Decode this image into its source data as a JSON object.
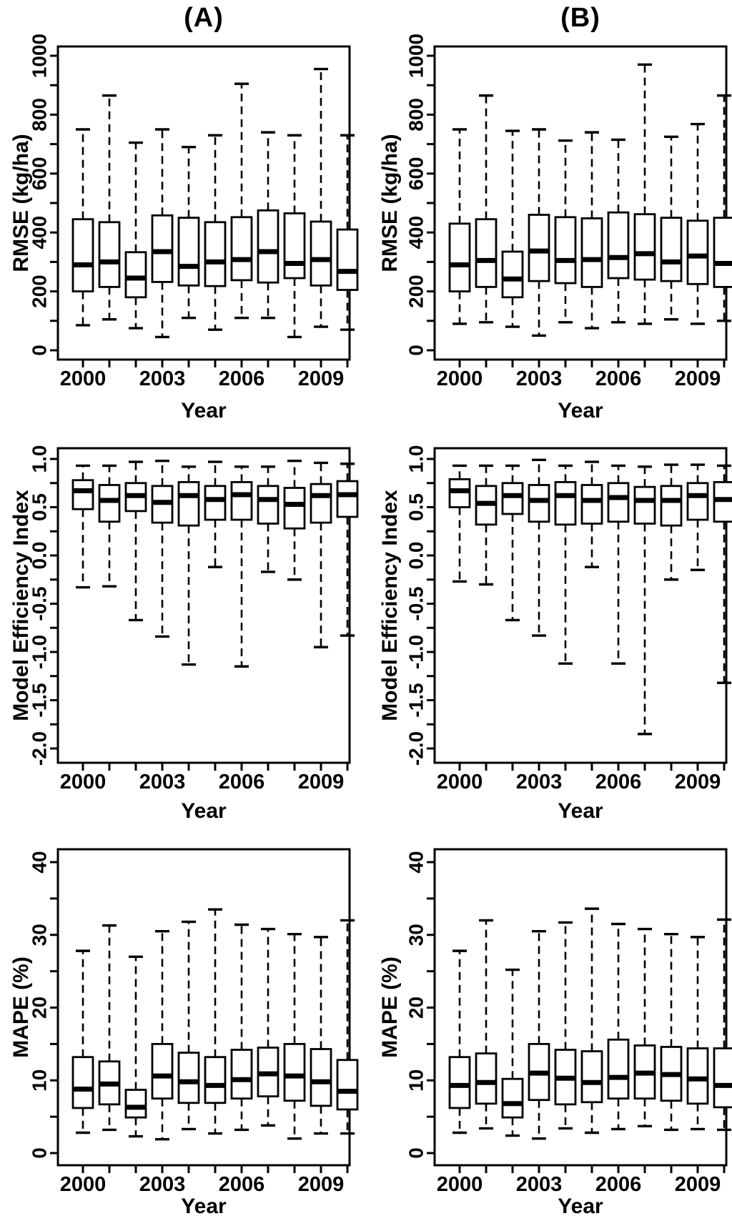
{
  "page": {
    "background": "#ffffff",
    "ink": "#000000"
  },
  "chart_data": [
    {
      "type": "boxplot",
      "column": "A",
      "metric": "rmse",
      "panel_title": "(A)",
      "ylabel": "RMSE (kg/ha)",
      "xlabel": "Year",
      "ylim": [
        0,
        1000
      ],
      "y_minor_step": 100,
      "y_major": [
        0,
        200,
        400,
        600,
        800,
        1000
      ],
      "y_major_labels": [
        "0",
        "200",
        "400",
        "600",
        "800",
        "1000"
      ],
      "x_labeled": {
        "positions": [
          0,
          3,
          6,
          9
        ],
        "labels": [
          "2000",
          "2003",
          "2006",
          "2009"
        ]
      },
      "boxes": [
        {
          "year": 2000,
          "low": 85,
          "q1": 200,
          "median": 290,
          "q3": 445,
          "high": 750
        },
        {
          "year": 2001,
          "low": 105,
          "q1": 215,
          "median": 300,
          "q3": 435,
          "high": 865
        },
        {
          "year": 2002,
          "low": 75,
          "q1": 180,
          "median": 245,
          "q3": 333,
          "high": 705
        },
        {
          "year": 2003,
          "low": 45,
          "q1": 232,
          "median": 335,
          "q3": 458,
          "high": 750
        },
        {
          "year": 2004,
          "low": 110,
          "q1": 220,
          "median": 285,
          "q3": 450,
          "high": 690
        },
        {
          "year": 2005,
          "low": 70,
          "q1": 218,
          "median": 300,
          "q3": 435,
          "high": 730
        },
        {
          "year": 2006,
          "low": 110,
          "q1": 238,
          "median": 308,
          "q3": 452,
          "high": 905
        },
        {
          "year": 2007,
          "low": 110,
          "q1": 230,
          "median": 335,
          "q3": 475,
          "high": 740
        },
        {
          "year": 2008,
          "low": 45,
          "q1": 245,
          "median": 295,
          "q3": 465,
          "high": 730
        },
        {
          "year": 2009,
          "low": 80,
          "q1": 220,
          "median": 308,
          "q3": 437,
          "high": 955
        },
        {
          "year": 2010,
          "low": 70,
          "q1": 205,
          "median": 268,
          "q3": 410,
          "high": 730
        }
      ]
    },
    {
      "type": "boxplot",
      "column": "B",
      "metric": "rmse",
      "panel_title": "(B)",
      "ylabel": "RMSE (kg/ha)",
      "xlabel": "Year",
      "ylim": [
        0,
        1000
      ],
      "y_minor_step": 100,
      "y_major": [
        0,
        200,
        400,
        600,
        800,
        1000
      ],
      "y_major_labels": [
        "0",
        "200",
        "400",
        "600",
        "800",
        "1000"
      ],
      "x_labeled": {
        "positions": [
          0,
          3,
          6,
          9
        ],
        "labels": [
          "2000",
          "2003",
          "2006",
          "2009"
        ]
      },
      "boxes": [
        {
          "year": 2000,
          "low": 90,
          "q1": 200,
          "median": 290,
          "q3": 430,
          "high": 750
        },
        {
          "year": 2001,
          "low": 95,
          "q1": 215,
          "median": 305,
          "q3": 445,
          "high": 865
        },
        {
          "year": 2002,
          "low": 80,
          "q1": 180,
          "median": 242,
          "q3": 335,
          "high": 745
        },
        {
          "year": 2003,
          "low": 50,
          "q1": 235,
          "median": 337,
          "q3": 460,
          "high": 750
        },
        {
          "year": 2004,
          "low": 95,
          "q1": 228,
          "median": 305,
          "q3": 452,
          "high": 712
        },
        {
          "year": 2005,
          "low": 75,
          "q1": 215,
          "median": 308,
          "q3": 448,
          "high": 740
        },
        {
          "year": 2006,
          "low": 95,
          "q1": 245,
          "median": 315,
          "q3": 468,
          "high": 715
        },
        {
          "year": 2007,
          "low": 90,
          "q1": 240,
          "median": 328,
          "q3": 462,
          "high": 970
        },
        {
          "year": 2008,
          "low": 105,
          "q1": 235,
          "median": 300,
          "q3": 450,
          "high": 725
        },
        {
          "year": 2009,
          "low": 90,
          "q1": 225,
          "median": 320,
          "q3": 440,
          "high": 768
        },
        {
          "year": 2010,
          "low": 100,
          "q1": 215,
          "median": 295,
          "q3": 450,
          "high": 865
        }
      ]
    },
    {
      "type": "boxplot",
      "column": "A",
      "metric": "model-efficiency-index",
      "ylabel": "Model Efficiency Index",
      "xlabel": "Year",
      "ylim": [
        -2.0,
        1.0
      ],
      "y_minor_step": 0.25,
      "y_major": [
        1.0,
        0.5,
        0.0,
        -0.5,
        -1.0,
        -1.5,
        -2.0
      ],
      "y_major_labels": [
        "1.0",
        "0.5",
        "0.0",
        "-0.5",
        "-1.0",
        "-1.5",
        "-2.0"
      ],
      "x_labeled": {
        "positions": [
          0,
          3,
          6,
          9
        ],
        "labels": [
          "2000",
          "2003",
          "2006",
          "2009"
        ]
      },
      "boxes": [
        {
          "year": 2000,
          "low": -0.33,
          "q1": 0.48,
          "median": 0.67,
          "q3": 0.78,
          "high": 0.93
        },
        {
          "year": 2001,
          "low": -0.32,
          "q1": 0.35,
          "median": 0.57,
          "q3": 0.73,
          "high": 0.93
        },
        {
          "year": 2002,
          "low": -0.67,
          "q1": 0.46,
          "median": 0.62,
          "q3": 0.75,
          "high": 0.97
        },
        {
          "year": 2003,
          "low": -0.84,
          "q1": 0.34,
          "median": 0.55,
          "q3": 0.72,
          "high": 0.98
        },
        {
          "year": 2004,
          "low": -1.13,
          "q1": 0.31,
          "median": 0.62,
          "q3": 0.76,
          "high": 0.92
        },
        {
          "year": 2005,
          "low": -0.12,
          "q1": 0.37,
          "median": 0.58,
          "q3": 0.72,
          "high": 0.97
        },
        {
          "year": 2006,
          "low": -1.15,
          "q1": 0.37,
          "median": 0.63,
          "q3": 0.76,
          "high": 0.92
        },
        {
          "year": 2007,
          "low": -0.17,
          "q1": 0.33,
          "median": 0.58,
          "q3": 0.72,
          "high": 0.92
        },
        {
          "year": 2008,
          "low": -0.25,
          "q1": 0.28,
          "median": 0.53,
          "q3": 0.7,
          "high": 0.98
        },
        {
          "year": 2009,
          "low": -0.95,
          "q1": 0.34,
          "median": 0.62,
          "q3": 0.74,
          "high": 0.96
        },
        {
          "year": 2010,
          "low": -0.83,
          "q1": 0.4,
          "median": 0.63,
          "q3": 0.77,
          "high": 0.95
        }
      ]
    },
    {
      "type": "boxplot",
      "column": "B",
      "metric": "model-efficiency-index",
      "ylabel": "Model Efficiency Index",
      "xlabel": "Year",
      "ylim": [
        -2.0,
        1.0
      ],
      "y_minor_step": 0.25,
      "y_major": [
        1.0,
        0.5,
        0.0,
        -0.5,
        -1.0,
        -1.5,
        -2.0
      ],
      "y_major_labels": [
        "1.0",
        "0.5",
        "0.0",
        "-0.5",
        "-1.0",
        "-1.5",
        "-2.0"
      ],
      "x_labeled": {
        "positions": [
          0,
          3,
          6,
          9
        ],
        "labels": [
          "2000",
          "2003",
          "2006",
          "2009"
        ]
      },
      "boxes": [
        {
          "year": 2000,
          "low": -0.27,
          "q1": 0.5,
          "median": 0.67,
          "q3": 0.79,
          "high": 0.93
        },
        {
          "year": 2001,
          "low": -0.3,
          "q1": 0.32,
          "median": 0.54,
          "q3": 0.72,
          "high": 0.93
        },
        {
          "year": 2002,
          "low": -0.67,
          "q1": 0.43,
          "median": 0.62,
          "q3": 0.75,
          "high": 0.93
        },
        {
          "year": 2003,
          "low": -0.83,
          "q1": 0.35,
          "median": 0.57,
          "q3": 0.73,
          "high": 0.99
        },
        {
          "year": 2004,
          "low": -1.12,
          "q1": 0.32,
          "median": 0.62,
          "q3": 0.76,
          "high": 0.93
        },
        {
          "year": 2005,
          "low": -0.12,
          "q1": 0.33,
          "median": 0.57,
          "q3": 0.73,
          "high": 0.97
        },
        {
          "year": 2006,
          "low": -1.12,
          "q1": 0.35,
          "median": 0.6,
          "q3": 0.75,
          "high": 0.93
        },
        {
          "year": 2007,
          "low": -1.85,
          "q1": 0.33,
          "median": 0.57,
          "q3": 0.71,
          "high": 0.92
        },
        {
          "year": 2008,
          "low": -0.25,
          "q1": 0.31,
          "median": 0.57,
          "q3": 0.72,
          "high": 0.94
        },
        {
          "year": 2009,
          "low": -0.15,
          "q1": 0.37,
          "median": 0.62,
          "q3": 0.75,
          "high": 0.94
        },
        {
          "year": 2010,
          "low": -1.32,
          "q1": 0.35,
          "median": 0.58,
          "q3": 0.76,
          "high": 0.93
        }
      ]
    },
    {
      "type": "boxplot",
      "column": "A",
      "metric": "mape",
      "ylabel": "MAPE (%)",
      "xlabel": "Year",
      "ylim": [
        0,
        40
      ],
      "y_minor_step": 5,
      "y_major": [
        0,
        10,
        20,
        30,
        40
      ],
      "y_major_labels": [
        "0",
        "10",
        "20",
        "30",
        "40"
      ],
      "x_labeled": {
        "positions": [
          0,
          3,
          6,
          9
        ],
        "labels": [
          "2000",
          "2003",
          "2006",
          "2009"
        ]
      },
      "boxes": [
        {
          "year": 2000,
          "low": 2.8,
          "q1": 6.2,
          "median": 8.8,
          "q3": 13.2,
          "high": 27.8
        },
        {
          "year": 2001,
          "low": 3.2,
          "q1": 6.7,
          "median": 9.5,
          "q3": 12.6,
          "high": 31.3
        },
        {
          "year": 2002,
          "low": 2.3,
          "q1": 4.9,
          "median": 6.3,
          "q3": 8.7,
          "high": 27.0
        },
        {
          "year": 2003,
          "low": 1.9,
          "q1": 7.5,
          "median": 10.6,
          "q3": 15.0,
          "high": 30.5
        },
        {
          "year": 2004,
          "low": 3.3,
          "q1": 6.9,
          "median": 9.8,
          "q3": 13.8,
          "high": 31.8
        },
        {
          "year": 2005,
          "low": 2.7,
          "q1": 6.9,
          "median": 9.3,
          "q3": 13.2,
          "high": 33.5
        },
        {
          "year": 2006,
          "low": 3.2,
          "q1": 7.5,
          "median": 10.1,
          "q3": 14.2,
          "high": 31.4
        },
        {
          "year": 2007,
          "low": 3.8,
          "q1": 7.8,
          "median": 10.9,
          "q3": 14.5,
          "high": 30.8
        },
        {
          "year": 2008,
          "low": 2.0,
          "q1": 7.2,
          "median": 10.6,
          "q3": 15.0,
          "high": 30.1
        },
        {
          "year": 2009,
          "low": 2.7,
          "q1": 6.5,
          "median": 9.8,
          "q3": 14.3,
          "high": 29.7
        },
        {
          "year": 2010,
          "low": 2.7,
          "q1": 6.0,
          "median": 8.5,
          "q3": 12.8,
          "high": 32.0
        }
      ]
    },
    {
      "type": "boxplot",
      "column": "B",
      "metric": "mape",
      "ylabel": "MAPE (%)",
      "xlabel": "Year",
      "ylim": [
        0,
        40
      ],
      "y_minor_step": 5,
      "y_major": [
        0,
        10,
        20,
        30,
        40
      ],
      "y_major_labels": [
        "0",
        "10",
        "20",
        "30",
        "40"
      ],
      "x_labeled": {
        "positions": [
          0,
          3,
          6,
          9
        ],
        "labels": [
          "2000",
          "2003",
          "2006",
          "2009"
        ]
      },
      "boxes": [
        {
          "year": 2000,
          "low": 2.8,
          "q1": 6.2,
          "median": 9.3,
          "q3": 13.2,
          "high": 27.8
        },
        {
          "year": 2001,
          "low": 3.4,
          "q1": 6.8,
          "median": 9.7,
          "q3": 13.7,
          "high": 32.0
        },
        {
          "year": 2002,
          "low": 2.4,
          "q1": 4.9,
          "median": 6.8,
          "q3": 10.2,
          "high": 25.2
        },
        {
          "year": 2003,
          "low": 2.0,
          "q1": 7.3,
          "median": 11.0,
          "q3": 15.0,
          "high": 30.5
        },
        {
          "year": 2004,
          "low": 3.4,
          "q1": 6.7,
          "median": 10.3,
          "q3": 14.2,
          "high": 31.7
        },
        {
          "year": 2005,
          "low": 2.8,
          "q1": 7.0,
          "median": 9.7,
          "q3": 14.0,
          "high": 33.6
        },
        {
          "year": 2006,
          "low": 3.3,
          "q1": 7.5,
          "median": 10.4,
          "q3": 15.6,
          "high": 31.5
        },
        {
          "year": 2007,
          "low": 3.7,
          "q1": 7.5,
          "median": 11.0,
          "q3": 14.8,
          "high": 30.8
        },
        {
          "year": 2008,
          "low": 3.2,
          "q1": 7.2,
          "median": 10.8,
          "q3": 14.6,
          "high": 30.1
        },
        {
          "year": 2009,
          "low": 3.3,
          "q1": 6.8,
          "median": 10.2,
          "q3": 14.4,
          "high": 29.7
        },
        {
          "year": 2010,
          "low": 3.2,
          "q1": 6.3,
          "median": 9.3,
          "q3": 14.4,
          "high": 32.1
        }
      ]
    }
  ]
}
